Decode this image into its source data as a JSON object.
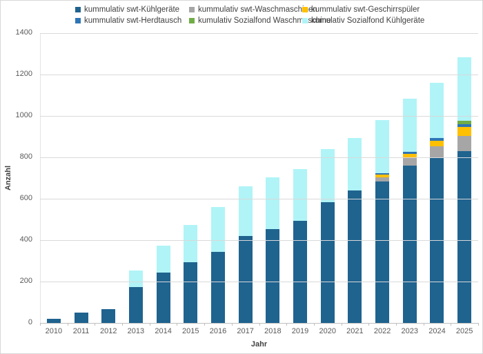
{
  "window": {
    "background": "#ffffff",
    "border_color": "#d7d7d7"
  },
  "axis": {
    "xlabel": "Jahr",
    "ylabel": "Anzahl"
  },
  "colors": {
    "gridline": "#d9d9d9",
    "axis_line": "#bfbfbf",
    "tick_text": "#595959",
    "legend_text": "#3f3f3f"
  },
  "chart_data": {
    "type": "bar",
    "stacked": true,
    "title": "",
    "xlabel": "Jahr",
    "ylabel": "Anzahl",
    "ylim": [
      0,
      1400
    ],
    "yticks": [
      0,
      200,
      400,
      600,
      800,
      1000,
      1200,
      1400
    ],
    "grid": true,
    "legend_position": "top",
    "categories": [
      "2010",
      "2011",
      "2012",
      "2013",
      "2014",
      "2015",
      "2016",
      "2017",
      "2018",
      "2019",
      "2020",
      "2021",
      "2022",
      "2023",
      "2024",
      "2025"
    ],
    "series": [
      {
        "name": "kummulativ swt-Kühlgeräte",
        "color": "#1f638f",
        "values": [
          20,
          50,
          66,
          175,
          245,
          295,
          345,
          420,
          452,
          493,
          585,
          640,
          685,
          760,
          800,
          830
        ]
      },
      {
        "name": "kummulativ swt-Waschmaschinen",
        "color": "#a6a6a6",
        "values": [
          0,
          0,
          0,
          0,
          0,
          0,
          0,
          0,
          0,
          0,
          0,
          0,
          18,
          40,
          52,
          72
        ]
      },
      {
        "name": "kummulativ swt-Geschirrspüler",
        "color": "#ffc000",
        "values": [
          0,
          0,
          0,
          0,
          0,
          0,
          0,
          0,
          0,
          0,
          0,
          0,
          14,
          16,
          28,
          45
        ]
      },
      {
        "name": "kummulativ swt-Herdtausch",
        "color": "#2e75b6",
        "values": [
          0,
          0,
          0,
          0,
          0,
          0,
          0,
          0,
          0,
          0,
          0,
          0,
          5,
          10,
          12,
          12
        ]
      },
      {
        "name": "kumulativ Sozialfond Waschmaschine",
        "color": "#70ad47",
        "values": [
          0,
          0,
          0,
          0,
          0,
          0,
          0,
          0,
          0,
          0,
          0,
          0,
          0,
          0,
          0,
          18
        ]
      },
      {
        "name": "kumulativ Sozialfond Kühlgeräte",
        "color": "#b0f4f7",
        "values": [
          0,
          0,
          0,
          78,
          130,
          180,
          215,
          240,
          252,
          252,
          255,
          255,
          258,
          258,
          268,
          308
        ]
      }
    ]
  }
}
